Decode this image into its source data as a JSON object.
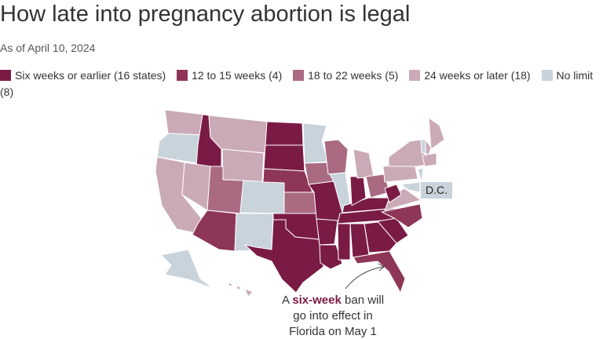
{
  "title": "How late into pregnancy abortion is legal",
  "subtitle": "As of April 10, 2024",
  "legend": [
    {
      "label": "Six weeks or earlier (16 states)",
      "color": "#7a1b46"
    },
    {
      "label": "12 to 15 weeks (4)",
      "color": "#8e3657"
    },
    {
      "label": "18 to 22 weeks (5)",
      "color": "#a96a82"
    },
    {
      "label": "24 weeks or later (18)",
      "color": "#cbaab7"
    },
    {
      "label": "No limit (8)",
      "color": "#c8d3db"
    }
  ],
  "dc_label": "D.C.",
  "annotation": {
    "lines": [
      [
        "A ",
        "six-week",
        " ban will"
      ],
      [
        "go into effect in"
      ],
      [
        "Florida on May 1"
      ]
    ]
  }
}
